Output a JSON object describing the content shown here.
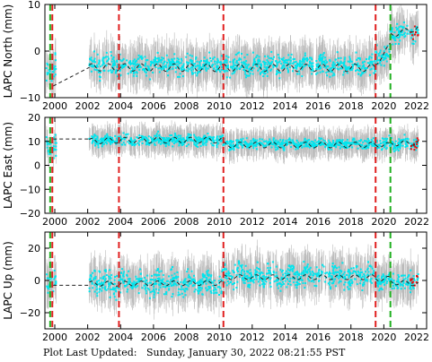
{
  "footer": {
    "label": "Plot Last Updated:",
    "timestamp": "Sunday, January 30, 2022 08:21:55 PST"
  },
  "colors": {
    "daily": "#00e5ee",
    "errorbar": "#b0b0b0",
    "model": "#222222",
    "recent": "#e01010",
    "equipment_change": "#e02020",
    "earthquake": "#20b020"
  },
  "chart_data": {
    "type": "scatter",
    "xlim": [
      1999.4,
      2022.6
    ],
    "x_ticks": [
      2000,
      2002,
      2004,
      2006,
      2008,
      2010,
      2012,
      2014,
      2016,
      2018,
      2020,
      2022
    ],
    "red_dashed_lines": [
      1999.85,
      2003.9,
      2010.25,
      2019.5
    ],
    "green_dashed_lines": [
      1999.72,
      2020.4
    ],
    "data_gap": [
      2000.1,
      2002.1
    ],
    "panels": [
      {
        "ylabel": "LAPC North (mm)",
        "ylim": [
          -10,
          10
        ],
        "y_ticks": [
          -10,
          0,
          10
        ],
        "model": {
          "segments": [
            {
              "x": [
                1999.9,
                2002.1
              ],
              "y": [
                -7.5,
                -3.5
              ]
            },
            {
              "x": [
                2002.1,
                2003.9
              ],
              "y": [
                -3.5,
                -3.5
              ],
              "seasonal": 0.8
            },
            {
              "x": [
                2003.9,
                2010.25
              ],
              "y": [
                -3.5,
                -3.6
              ],
              "seasonal": 0.8
            },
            {
              "x": [
                2010.25,
                2019.5
              ],
              "y": [
                -3.6,
                -3.6
              ],
              "seasonal": 0.8
            },
            {
              "x": [
                2019.5,
                2020.4
              ],
              "y": [
                -3.0,
                1.5
              ],
              "seasonal": 0.4
            },
            {
              "x": [
                2020.4,
                2022.1
              ],
              "y": [
                3.5,
                5.0
              ],
              "seasonal": 0.6
            }
          ]
        },
        "scatter": [
          {
            "x": [
              1999.5,
              2000.1
            ],
            "y": -4.0,
            "spread": 2.5
          },
          {
            "x": [
              2002.1,
              2019.5
            ],
            "y": -3.0,
            "spread": 2.0
          },
          {
            "x": [
              2019.5,
              2020.4
            ],
            "y": -1.0,
            "spread": 2.3
          },
          {
            "x": [
              2020.4,
              2022.1
            ],
            "y": 4.0,
            "spread": 2.0
          }
        ],
        "err": 3.5
      },
      {
        "ylabel": "LAPC East (mm)",
        "ylim": [
          -20,
          20
        ],
        "y_ticks": [
          -20,
          -10,
          0,
          10,
          20
        ],
        "model": {
          "segments": [
            {
              "x": [
                1999.9,
                2002.1
              ],
              "y": [
                11.0,
                11.0
              ]
            },
            {
              "x": [
                2002.1,
                2003.9
              ],
              "y": [
                10.0,
                10.5
              ],
              "seasonal": 1.2
            },
            {
              "x": [
                2003.9,
                2010.25
              ],
              "y": [
                10.5,
                10.5
              ],
              "seasonal": 1.2
            },
            {
              "x": [
                2010.25,
                2019.5
              ],
              "y": [
                8.5,
                8.5
              ],
              "seasonal": 1.2
            },
            {
              "x": [
                2019.5,
                2020.4
              ],
              "y": [
                8.5,
                8.5
              ],
              "seasonal": 1.0
            },
            {
              "x": [
                2020.4,
                2022.1
              ],
              "y": [
                9.0,
                9.5
              ],
              "seasonal": 1.0
            }
          ]
        },
        "scatter": [
          {
            "x": [
              1999.5,
              2000.1
            ],
            "y": 8.0,
            "spread": 4.0
          },
          {
            "x": [
              2002.1,
              2010.25
            ],
            "y": 10.5,
            "spread": 2.2
          },
          {
            "x": [
              2010.25,
              2019.5
            ],
            "y": 9.0,
            "spread": 2.0
          },
          {
            "x": [
              2019.5,
              2022.1
            ],
            "y": 9.0,
            "spread": 2.5
          }
        ],
        "err": 4.5
      },
      {
        "ylabel": "LAPC Up (mm)",
        "ylim": [
          -30,
          30
        ],
        "y_ticks": [
          -20,
          0,
          20
        ],
        "model": {
          "segments": [
            {
              "x": [
                1999.9,
                2002.1
              ],
              "y": [
                -3.0,
                -3.0
              ]
            },
            {
              "x": [
                2002.1,
                2003.9
              ],
              "y": [
                -2.0,
                -2.0
              ],
              "seasonal": 1.5
            },
            {
              "x": [
                2003.9,
                2010.25
              ],
              "y": [
                -2.0,
                -1.5
              ],
              "seasonal": 1.5
            },
            {
              "x": [
                2010.25,
                2019.5
              ],
              "y": [
                2.0,
                2.0
              ],
              "seasonal": 1.5
            },
            {
              "x": [
                2019.5,
                2020.4
              ],
              "y": [
                1.0,
                1.0
              ],
              "seasonal": 1.5
            },
            {
              "x": [
                2020.4,
                2022.1
              ],
              "y": [
                -1.0,
                -2.0
              ],
              "seasonal": 1.5
            }
          ]
        },
        "scatter": [
          {
            "x": [
              1999.5,
              2000.1
            ],
            "y": 0.0,
            "spread": 6.0
          },
          {
            "x": [
              2002.1,
              2010.25
            ],
            "y": -2.0,
            "spread": 7.0
          },
          {
            "x": [
              2010.25,
              2019.5
            ],
            "y": 3.0,
            "spread": 7.0
          },
          {
            "x": [
              2019.5,
              2022.1
            ],
            "y": 0.0,
            "spread": 5.0
          }
        ],
        "err": 10.0
      }
    ]
  }
}
